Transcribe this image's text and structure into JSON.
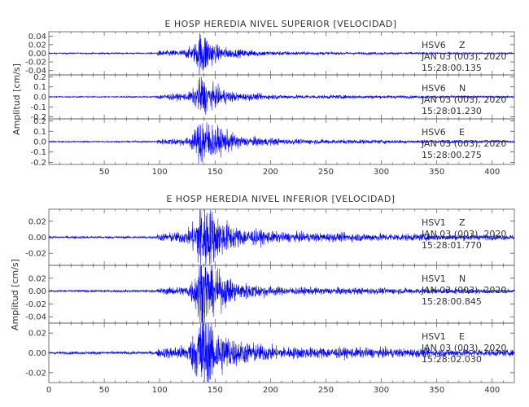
{
  "chart_data": [
    {
      "type": "line",
      "title": "E HOSP HEREDIA NIVEL SUPERIOR [VELOCIDAD]",
      "ylabel": "Amplitud [cm/s]",
      "xlabel": "",
      "xlim": [
        0,
        420
      ],
      "x_ticks": [
        "50",
        "100",
        "150",
        "200",
        "250",
        "300",
        "350",
        "400"
      ],
      "x_tick_values": [
        50,
        100,
        150,
        200,
        250,
        300,
        350,
        400
      ],
      "grid": false,
      "panels": [
        {
          "name": "HSV6 Z",
          "station": "HSV6",
          "component": "Z",
          "date": "JAN 03 (003), 2020",
          "time": "15:28:00.135",
          "ylim": [
            -0.05,
            0.05
          ],
          "y_ticks": [
            "0.04",
            "0.02",
            "0.00",
            "-0.02",
            "-0.04"
          ],
          "y_tick_values": [
            0.04,
            0.02,
            0.0,
            -0.02,
            -0.04
          ],
          "color": "#0000ff",
          "noise": 0.0008,
          "envelope": [
            [
              0,
              0.0008
            ],
            [
              97,
              0.0009
            ],
            [
              98,
              0.003
            ],
            [
              120,
              0.004
            ],
            [
              130,
              0.008
            ],
            [
              135,
              0.02
            ],
            [
              138,
              0.03
            ],
            [
              142,
              0.022
            ],
            [
              150,
              0.01
            ],
            [
              165,
              0.005
            ],
            [
              200,
              0.0025
            ],
            [
              260,
              0.0015
            ],
            [
              420,
              0.001
            ]
          ]
        },
        {
          "name": "HSV6 N",
          "station": "HSV6",
          "component": "N",
          "date": "JAN 03 (003), 2020",
          "time": "15:28:01.230",
          "ylim": [
            -0.22,
            0.22
          ],
          "y_ticks": [
            "0.2",
            "0.1",
            "0.0",
            "-0.1",
            "-0.2"
          ],
          "y_tick_values": [
            0.2,
            0.1,
            0.0,
            -0.1,
            -0.2
          ],
          "color": "#0000ff",
          "noise": 0.003,
          "envelope": [
            [
              0,
              0.003
            ],
            [
              97,
              0.004
            ],
            [
              98,
              0.012
            ],
            [
              125,
              0.018
            ],
            [
              133,
              0.05
            ],
            [
              138,
              0.12
            ],
            [
              141,
              0.08
            ],
            [
              150,
              0.05
            ],
            [
              170,
              0.02
            ],
            [
              210,
              0.01
            ],
            [
              420,
              0.005
            ]
          ]
        },
        {
          "name": "HSV6 E",
          "station": "HSV6",
          "component": "E",
          "date": "JAN 03 (003), 2020",
          "time": "15:28:00.275",
          "ylim": [
            -0.22,
            0.22
          ],
          "y_ticks": [
            "0.2",
            "0.1",
            "0.0",
            "-0.1",
            "-0.2"
          ],
          "y_tick_values": [
            0.2,
            0.1,
            0.0,
            -0.1,
            -0.2
          ],
          "color": "#0000ff",
          "noise": 0.003,
          "envelope": [
            [
              0,
              0.003
            ],
            [
              97,
              0.004
            ],
            [
              98,
              0.012
            ],
            [
              125,
              0.02
            ],
            [
              133,
              0.06
            ],
            [
              138,
              0.14
            ],
            [
              143,
              0.1
            ],
            [
              155,
              0.06
            ],
            [
              175,
              0.025
            ],
            [
              220,
              0.012
            ],
            [
              420,
              0.005
            ]
          ]
        }
      ]
    },
    {
      "type": "line",
      "title": "E HOSP HEREDIA NIVEL INFERIOR [VELOCIDAD]",
      "ylabel": "Amplitud [cm/s]",
      "xlabel": "",
      "xlim": [
        0,
        420
      ],
      "x_ticks": [
        "0",
        "50",
        "100",
        "150",
        "200",
        "250",
        "300",
        "350",
        "400"
      ],
      "x_tick_values": [
        0,
        50,
        100,
        150,
        200,
        250,
        300,
        350,
        400
      ],
      "grid": false,
      "panels": [
        {
          "name": "HSV1 Z",
          "station": "HSV1",
          "component": "Z",
          "date": "JAN 03 (003), 2020",
          "time": "15:28:01.770",
          "ylim": [
            -0.035,
            0.035
          ],
          "y_ticks": [
            "0.02",
            "0.00",
            "-0.02"
          ],
          "y_tick_values": [
            0.02,
            0.0,
            -0.02
          ],
          "color": "#0000ff",
          "noise": 0.0007,
          "envelope": [
            [
              0,
              0.0007
            ],
            [
              97,
              0.0008
            ],
            [
              98,
              0.002
            ],
            [
              125,
              0.004
            ],
            [
              133,
              0.012
            ],
            [
              137,
              0.028
            ],
            [
              143,
              0.022
            ],
            [
              150,
              0.014
            ],
            [
              170,
              0.006
            ],
            [
              210,
              0.003
            ],
            [
              420,
              0.0015
            ]
          ]
        },
        {
          "name": "HSV1 N",
          "station": "HSV1",
          "component": "N",
          "date": "JAN 03 (003), 2020",
          "time": "15:28:00.845",
          "ylim": [
            -0.05,
            0.04
          ],
          "y_ticks": [
            "0.02",
            "0.00",
            "-0.02",
            "-0.04"
          ],
          "y_tick_values": [
            0.02,
            0.0,
            -0.02,
            -0.04
          ],
          "color": "#0000ff",
          "noise": 0.0008,
          "envelope": [
            [
              0,
              0.0008
            ],
            [
              97,
              0.0009
            ],
            [
              98,
              0.002
            ],
            [
              125,
              0.004
            ],
            [
              133,
              0.015
            ],
            [
              137,
              0.035
            ],
            [
              143,
              0.025
            ],
            [
              150,
              0.016
            ],
            [
              170,
              0.007
            ],
            [
              210,
              0.003
            ],
            [
              420,
              0.0015
            ]
          ]
        },
        {
          "name": "HSV1 E",
          "station": "HSV1",
          "component": "E",
          "date": "JAN 03 (003), 2020",
          "time": "15:28:02.030",
          "ylim": [
            -0.03,
            0.03
          ],
          "y_ticks": [
            "0.02",
            "0.00",
            "-0.02"
          ],
          "y_tick_values": [
            0.02,
            0.0,
            -0.02
          ],
          "color": "#0000ff",
          "noise": 0.0007,
          "envelope": [
            [
              0,
              0.0007
            ],
            [
              97,
              0.0008
            ],
            [
              98,
              0.002
            ],
            [
              125,
              0.004
            ],
            [
              133,
              0.012
            ],
            [
              137,
              0.026
            ],
            [
              143,
              0.02
            ],
            [
              150,
              0.013
            ],
            [
              170,
              0.006
            ],
            [
              210,
              0.003
            ],
            [
              420,
              0.0015
            ]
          ]
        }
      ]
    }
  ]
}
